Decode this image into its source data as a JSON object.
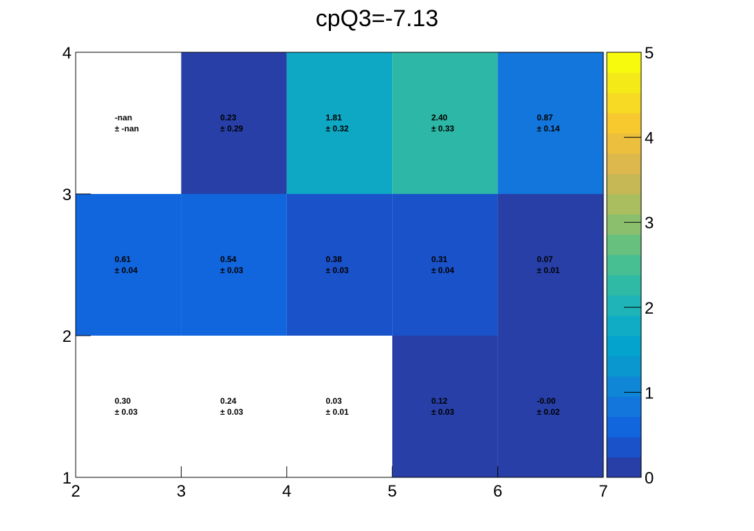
{
  "chart_data": {
    "type": "heatmap",
    "title": "cpQ3=-7.13",
    "xlabel": "",
    "ylabel": "",
    "x_edges": [
      2,
      3,
      4,
      5,
      6,
      7
    ],
    "y_edges": [
      1,
      2,
      3,
      4
    ],
    "x_tick_labels": [
      "2",
      "3",
      "4",
      "5",
      "6",
      "7"
    ],
    "y_tick_labels": [
      "1",
      "2",
      "3",
      "4"
    ],
    "z_range": [
      0,
      5
    ],
    "colorbar_tick_labels": [
      "0",
      "1",
      "2",
      "3",
      "4",
      "5"
    ],
    "cells": [
      {
        "x": [
          2,
          3
        ],
        "y": [
          1,
          2
        ],
        "value": 0.3,
        "label": "0.30",
        "error_label": "± 0.03",
        "color": "#ffffff"
      },
      {
        "x": [
          3,
          4
        ],
        "y": [
          1,
          2
        ],
        "value": 0.24,
        "label": "0.24",
        "error_label": "± 0.03",
        "color": "#ffffff"
      },
      {
        "x": [
          4,
          5
        ],
        "y": [
          1,
          2
        ],
        "value": 0.03,
        "label": "0.03",
        "error_label": "± 0.01",
        "color": "#ffffff"
      },
      {
        "x": [
          5,
          6
        ],
        "y": [
          1,
          2
        ],
        "value": 0.12,
        "label": "0.12",
        "error_label": "± 0.03",
        "color": "#273fa7"
      },
      {
        "x": [
          6,
          7
        ],
        "y": [
          1,
          2
        ],
        "value": -0.0,
        "label": "-0.00",
        "error_label": "± 0.02",
        "color": "#273fa7"
      },
      {
        "x": [
          2,
          3
        ],
        "y": [
          2,
          3
        ],
        "value": 0.61,
        "label": "0.61",
        "error_label": "± 0.04",
        "color": "#1165dd"
      },
      {
        "x": [
          3,
          4
        ],
        "y": [
          2,
          3
        ],
        "value": 0.54,
        "label": "0.54",
        "error_label": "± 0.03",
        "color": "#1165dd"
      },
      {
        "x": [
          4,
          5
        ],
        "y": [
          2,
          3
        ],
        "value": 0.38,
        "label": "0.38",
        "error_label": "± 0.03",
        "color": "#1a52ca"
      },
      {
        "x": [
          5,
          6
        ],
        "y": [
          2,
          3
        ],
        "value": 0.31,
        "label": "0.31",
        "error_label": "± 0.04",
        "color": "#1a52ca"
      },
      {
        "x": [
          6,
          7
        ],
        "y": [
          2,
          3
        ],
        "value": 0.07,
        "label": "0.07",
        "error_label": "± 0.01",
        "color": "#273fa7"
      },
      {
        "x": [
          2,
          3
        ],
        "y": [
          3,
          4
        ],
        "value": null,
        "label": "-nan",
        "error_label": "± -nan",
        "color": "#ffffff"
      },
      {
        "x": [
          3,
          4
        ],
        "y": [
          3,
          4
        ],
        "value": 0.23,
        "label": "0.23",
        "error_label": "± 0.29",
        "color": "#273fa7"
      },
      {
        "x": [
          4,
          5
        ],
        "y": [
          3,
          4
        ],
        "value": 1.81,
        "label": "1.81",
        "error_label": "± 0.32",
        "color": "#0ea8c4"
      },
      {
        "x": [
          5,
          6
        ],
        "y": [
          3,
          4
        ],
        "value": 2.4,
        "label": "2.40",
        "error_label": "± 0.33",
        "color": "#2db7a6"
      },
      {
        "x": [
          6,
          7
        ],
        "y": [
          3,
          4
        ],
        "value": 0.87,
        "label": "0.87",
        "error_label": "± 0.14",
        "color": "#1276dc"
      }
    ],
    "palette": [
      "#273fa7",
      "#1a52ca",
      "#1165dd",
      "#1276dc",
      "#0f86d6",
      "#0a97d0",
      "#04a3ce",
      "#10acc6",
      "#1fb4b8",
      "#2fbaa6",
      "#48be93",
      "#68c07e",
      "#8bbf6e",
      "#aabd5f",
      "#c6b855",
      "#dcb84d",
      "#ecbf3e",
      "#f7c92e",
      "#f6da24",
      "#f4ea18",
      "#f8fa0e"
    ],
    "grid": false,
    "legend": "colorbar-right"
  }
}
